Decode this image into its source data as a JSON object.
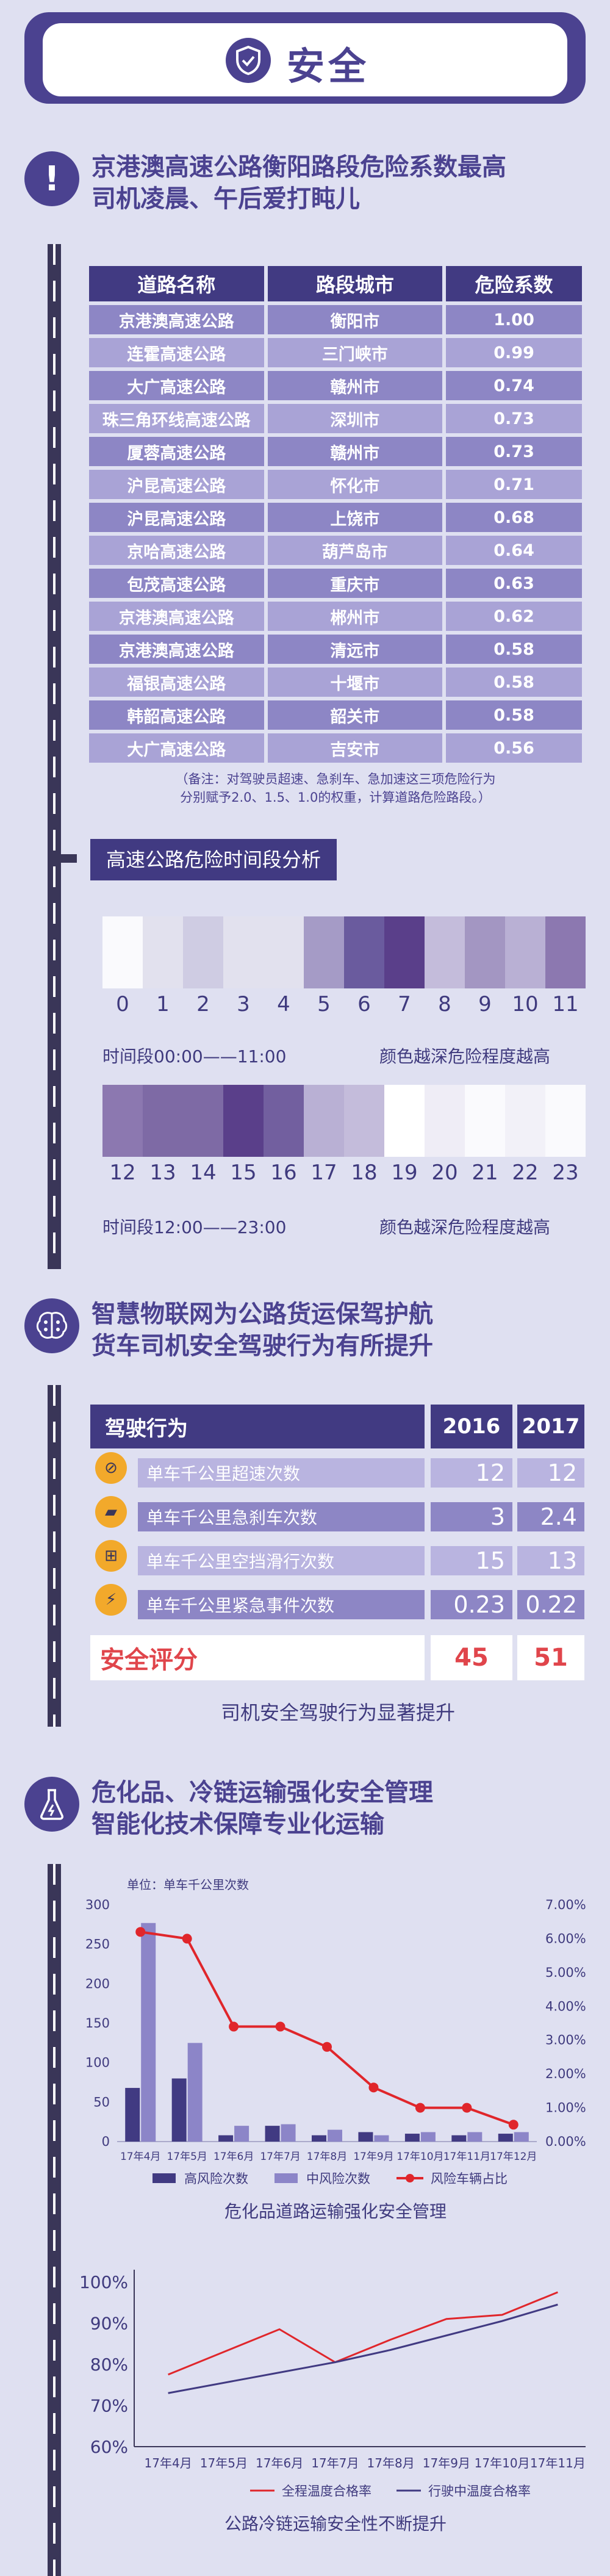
{
  "header": {
    "title": "安全"
  },
  "section1": {
    "title_line1": "京港澳高速公路衡阳路段危险系数最高",
    "title_line2": "司机凌晨、午后爱打盹儿",
    "table": {
      "columns": [
        "道路名称",
        "路段城市",
        "危险系数"
      ],
      "rows": [
        [
          "京港澳高速公路",
          "衡阳市",
          "1.00"
        ],
        [
          "连霍高速公路",
          "三门峡市",
          "0.99"
        ],
        [
          "大广高速公路",
          "赣州市",
          "0.74"
        ],
        [
          "珠三角环线高速公路",
          "深圳市",
          "0.73"
        ],
        [
          "厦蓉高速公路",
          "赣州市",
          "0.73"
        ],
        [
          "沪昆高速公路",
          "怀化市",
          "0.71"
        ],
        [
          "沪昆高速公路",
          "上饶市",
          "0.68"
        ],
        [
          "京哈高速公路",
          "葫芦岛市",
          "0.64"
        ],
        [
          "包茂高速公路",
          "重庆市",
          "0.63"
        ],
        [
          "京港澳高速公路",
          "郴州市",
          "0.62"
        ],
        [
          "京港澳高速公路",
          "清远市",
          "0.58"
        ],
        [
          "福银高速公路",
          "十堰市",
          "0.58"
        ],
        [
          "韩韶高速公路",
          "韶关市",
          "0.58"
        ],
        [
          "大广高速公路",
          "吉安市",
          "0.56"
        ]
      ]
    },
    "note_line1": "（备注：对驾驶员超速、急刹车、急加速这三项危险行为",
    "note_line2": "分别赋予2.0、1.5、1.0的权重，计算道路危险路段。）",
    "heatmap_title": "高速公路危险时间段分析",
    "am_label": "时间段00:00——11:00",
    "pm_label": "时间段12:00——23:00",
    "legend_note": "颜色越深危险程度越高"
  },
  "section2": {
    "title_line1": "智慧物联网为公路货运保驾护航",
    "title_line2": "货车司机安全驾驶行为有所提升",
    "header_label": "驾驶行为",
    "year1": "2016",
    "year2": "2017",
    "rows": [
      {
        "label": "单车千公里超速次数",
        "v2016": "12",
        "v2017": "12",
        "icon": "speed-icon"
      },
      {
        "label": "单车千公里急刹车次数",
        "v2016": "3",
        "v2017": "2.4",
        "icon": "brake-icon"
      },
      {
        "label": "单车千公里空挡滑行次数",
        "v2016": "15",
        "v2017": "13",
        "icon": "gear-shift-icon"
      },
      {
        "label": "单车千公里紧急事件次数",
        "v2016": "0.23",
        "v2017": "0.22",
        "icon": "lightning-icon"
      }
    ],
    "score_label": "安全评分",
    "score_2016": "45",
    "score_2017": "51",
    "caption": "司机安全驾驶行为显著提升"
  },
  "section3": {
    "title_line1": "危化品、冷链运输强化安全管理",
    "title_line2": "智能化技术保障专业化运输"
  },
  "chart_data": [
    {
      "type": "heatmap",
      "title": "高速公路危险时间段分析",
      "x": [
        0,
        1,
        2,
        3,
        4,
        5,
        6,
        7,
        8,
        9,
        10,
        11,
        12,
        13,
        14,
        15,
        16,
        17,
        18,
        19,
        20,
        21,
        22,
        23
      ],
      "colors": [
        "#fafafd",
        "#e2e1ee",
        "#cfcce3",
        "#e2e1ee",
        "#e2e1ee",
        "#a59bc6",
        "#6a5b9e",
        "#5a3f8a",
        "#c4bcdb",
        "#a396c2",
        "#b9b0d4",
        "#8c78b0",
        "#8c78b0",
        "#7e6aa5",
        "#7e6aa5",
        "#5a3f8a",
        "#725f9f",
        "#b9b0d4",
        "#c4bcdb",
        "#ffffff",
        "#efedf6",
        "#fafafd",
        "#f2f1f8",
        "#fafafd"
      ],
      "note": "颜色越深危险程度越高"
    },
    {
      "type": "bar",
      "unit_label": "单车千公里次数",
      "categories": [
        "17年4月",
        "17年5月",
        "17年6月",
        "17年7月",
        "17年8月",
        "17年9月",
        "17年10月",
        "17年11月",
        "17年12月"
      ],
      "ylim": [
        0,
        300
      ],
      "y_ticks": [
        "0",
        "50",
        "100",
        "150",
        "200",
        "250",
        "300"
      ],
      "y2lim": [
        0,
        7
      ],
      "y2_ticks": [
        "0.00%",
        "1.00%",
        "2.00%",
        "3.00%",
        "4.00%",
        "5.00%",
        "6.00%",
        "7.00%"
      ],
      "series": [
        {
          "name": "高风险次数",
          "type": "bar",
          "color": "#413a82",
          "values": [
            68,
            80,
            8,
            20,
            8,
            12,
            10,
            8,
            10
          ]
        },
        {
          "name": "中风险次数",
          "type": "bar",
          "color": "#8c85c8",
          "values": [
            277,
            125,
            20,
            22,
            15,
            8,
            12,
            12,
            12
          ]
        },
        {
          "name": "风险车辆占比",
          "type": "line",
          "axis": "right",
          "color": "#e0262b",
          "values": [
            6.2,
            6.0,
            3.4,
            3.4,
            2.8,
            1.6,
            1.0,
            1.0,
            0.5
          ]
        }
      ],
      "caption": "危化品道路运输强化安全管理"
    },
    {
      "type": "line",
      "categories": [
        "17年4月",
        "17年5月",
        "17年6月",
        "17年7月",
        "17年8月",
        "17年9月",
        "17年10月",
        "17年11月"
      ],
      "ylim": [
        60,
        100
      ],
      "y_ticks": [
        "60%",
        "70%",
        "80%",
        "90%",
        "100%"
      ],
      "series": [
        {
          "name": "全程温度合格率",
          "color": "#e0262b",
          "values": [
            77.5,
            83,
            88.5,
            80.5,
            86,
            91,
            92,
            97.5
          ]
        },
        {
          "name": "行驶中温度合格率",
          "color": "#413a82",
          "values": [
            73,
            75.5,
            78,
            80.5,
            83.5,
            87,
            90.5,
            94.5
          ]
        }
      ],
      "caption": "公路冷链运输安全性不断提升"
    }
  ]
}
